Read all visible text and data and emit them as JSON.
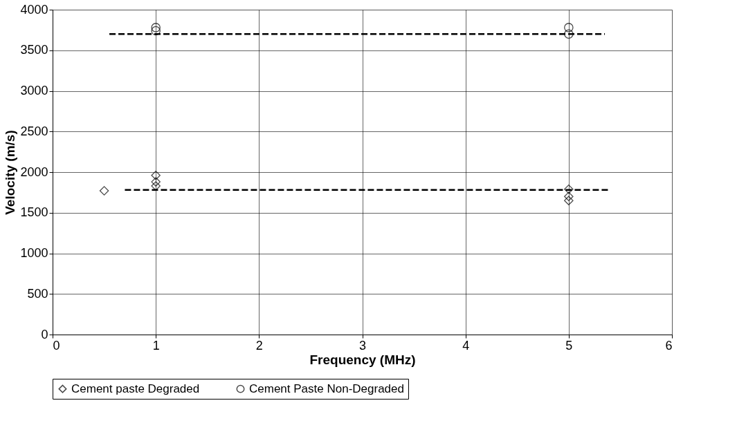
{
  "chart_data": {
    "type": "scatter",
    "xlabel": "Frequency (MHz)",
    "ylabel": "Velocity (m/s)",
    "xlim": [
      0,
      6
    ],
    "xticks": [
      0,
      1,
      2,
      3,
      4,
      5,
      6
    ],
    "ylim": [
      0,
      4000
    ],
    "yticks": [
      0,
      500,
      1000,
      1500,
      2000,
      2500,
      3000,
      3500,
      4000
    ],
    "grid": true,
    "legend": "bottom",
    "series": [
      {
        "name": "Cement paste Degraded",
        "color": "#000000",
        "marker": "diamond",
        "x": [
          0.5,
          1,
          1,
          1,
          5,
          5,
          5
        ],
        "values": [
          1770,
          1960,
          1880,
          1830,
          1790,
          1700,
          1650
        ]
      },
      {
        "name": "Cement Paste Non-Degraded",
        "color": "#000000",
        "marker": "circle",
        "x": [
          1,
          1,
          5,
          5
        ],
        "values": [
          3780,
          3740,
          3780,
          3700
        ]
      },
      {
        "type": "line",
        "color": "#000000",
        "line_style": "dashed",
        "x": [
          0.55,
          5.35
        ],
        "values": [
          3700,
          3700
        ]
      },
      {
        "type": "line",
        "color": "#000000",
        "line_style": "dashed",
        "x": [
          0.7,
          5.4
        ],
        "values": [
          1780,
          1780
        ]
      }
    ]
  }
}
